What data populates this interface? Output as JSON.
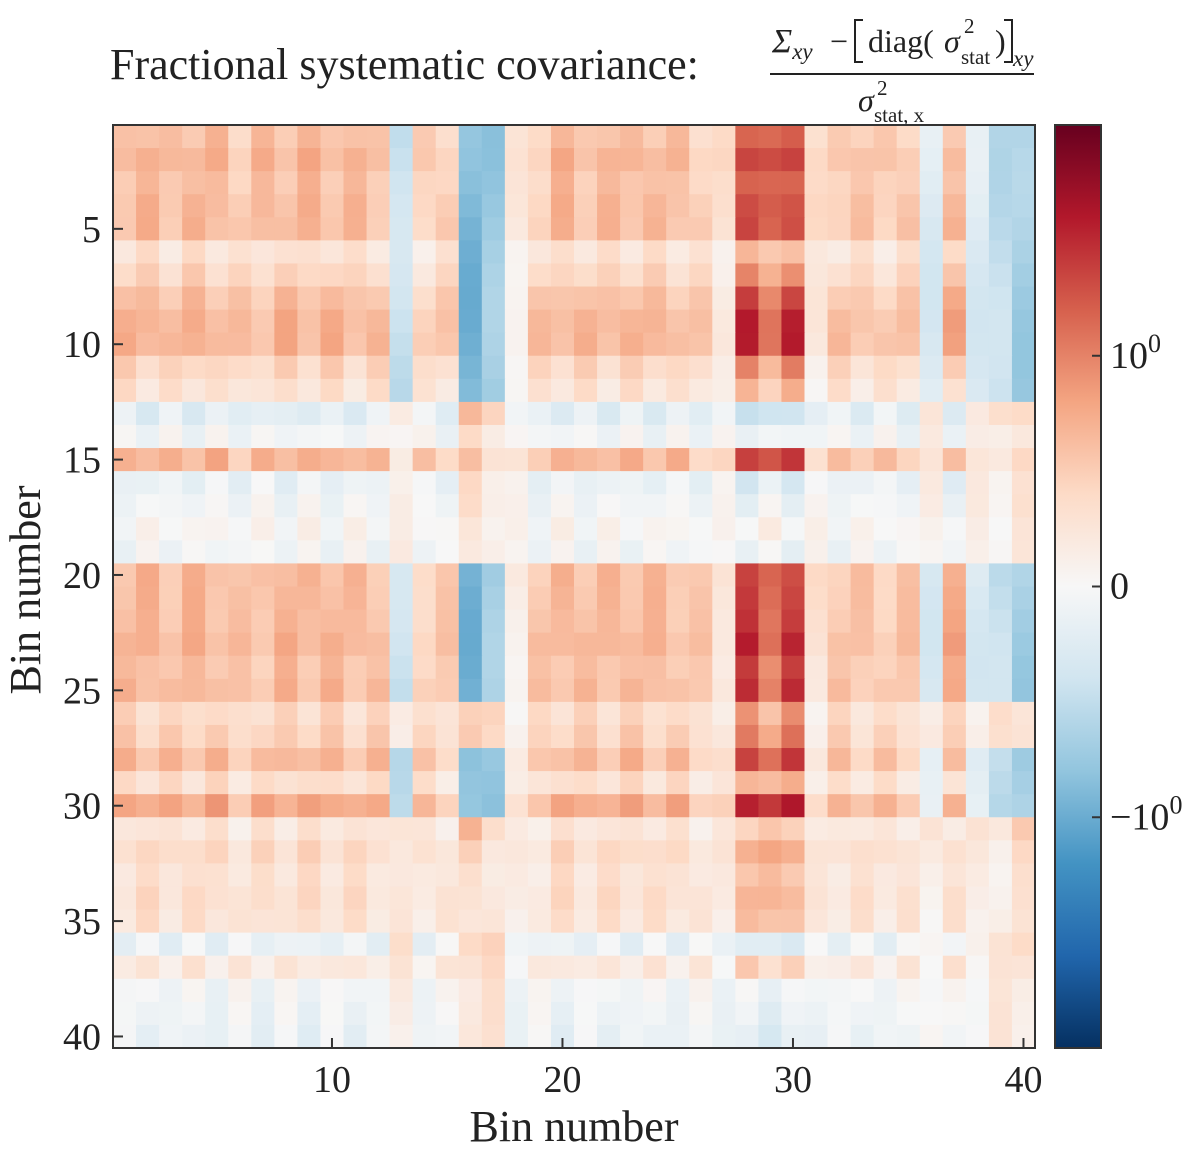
{
  "chart_data": {
    "type": "heatmap",
    "title_prefix": "Fractional systematic covariance:",
    "formula": {
      "sigma_upper": "Σ",
      "xy_sub": "xy",
      "minus": "−",
      "diag": "diag(",
      "sigma_lower": "σ",
      "sq": "2",
      "stat": "stat",
      "close": ")",
      "stat_x": "stat, x"
    },
    "xlabel": "Bin number",
    "ylabel": "Bin number",
    "xlim": [
      0.5,
      40.5
    ],
    "ylim": [
      0.5,
      40.5
    ],
    "x_ticks": [
      10,
      20,
      30,
      40
    ],
    "y_ticks": [
      5,
      10,
      15,
      20,
      25,
      30,
      35,
      40
    ],
    "x_tick_labels": [
      "10",
      "20",
      "30",
      "40"
    ],
    "y_tick_labels": [
      "5",
      "10",
      "15",
      "20",
      "25",
      "30",
      "35",
      "40"
    ],
    "n_bins": 40,
    "colormap": "RdBu_r",
    "colorbar": {
      "scale": "symlog",
      "range": [
        -2,
        2
      ],
      "ticks": [
        1,
        0,
        -1
      ],
      "tick_bases": [
        "10",
        "0",
        "−10"
      ],
      "tick_exps": [
        "0",
        "",
        "0"
      ]
    },
    "row_factor": [
      0.7,
      0.8,
      0.7,
      0.75,
      0.75,
      0.35,
      0.5,
      0.7,
      0.8,
      0.8,
      0.5,
      0.35,
      -0.25,
      -0.05,
      0.8,
      -0.15,
      -0.05,
      0.05,
      -0.05,
      0.75,
      0.75,
      0.75,
      0.8,
      0.7,
      0.75,
      0.45,
      0.55,
      0.75,
      0.4,
      0.9,
      0.3,
      0.45,
      0.35,
      0.4,
      0.35,
      -0.15,
      0.25,
      -0.05,
      -0.1,
      -0.15
    ],
    "col_factor": [
      0.75,
      0.75,
      0.7,
      0.75,
      0.75,
      0.6,
      0.7,
      0.75,
      0.75,
      0.75,
      0.7,
      0.7,
      -0.5,
      0.55,
      0.55,
      -1.0,
      -0.8,
      0.2,
      0.6,
      0.75,
      0.7,
      0.7,
      0.75,
      0.7,
      0.7,
      0.55,
      0.35,
      1.6,
      1.3,
      1.6,
      0.35,
      0.65,
      0.6,
      0.6,
      0.6,
      -0.3,
      0.8,
      -0.3,
      -0.55,
      -0.75
    ],
    "row_neg_response": [
      1,
      1,
      1,
      1,
      1,
      1,
      1,
      1,
      1,
      1,
      1,
      1,
      -0.6,
      -0.3,
      -0.5,
      -0.3,
      -0.3,
      -0.2,
      -0.2,
      1,
      1,
      1,
      1,
      1,
      1,
      -0.5,
      -0.5,
      1,
      1,
      1,
      -0.6,
      -0.4,
      -0.3,
      -0.3,
      -0.3,
      -0.5,
      -0.4,
      -0.3,
      -0.3,
      -0.3
    ]
  }
}
